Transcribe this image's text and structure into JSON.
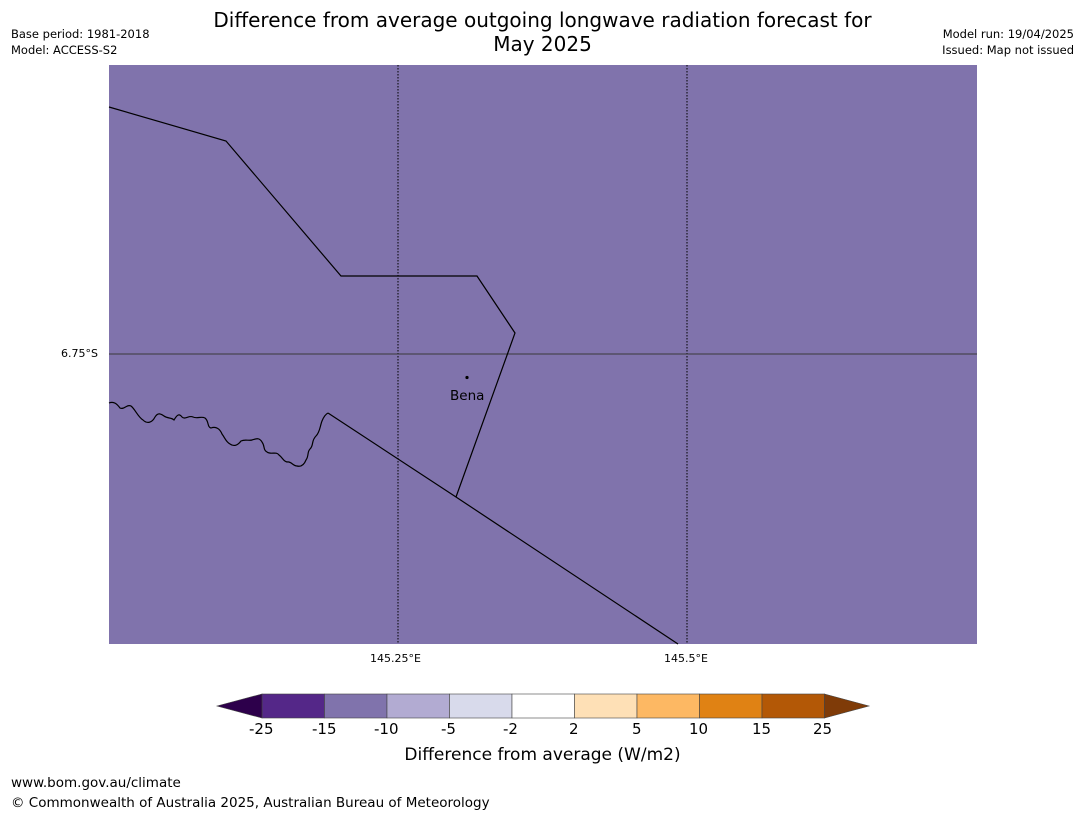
{
  "header": {
    "title_line1": "Difference from average outgoing longwave radiation forecast for",
    "title_line2": "May 2025",
    "base_period": "Base period: 1981-2018",
    "model": "Model: ACCESS-S2",
    "model_run": "Model run: 19/04/2025",
    "issued": "Issued: Map not issued"
  },
  "map": {
    "fill_color": "#8073ac",
    "latitude_labels": [
      "6.75°S"
    ],
    "longitude_labels": [
      "145.25°E",
      "145.5°E"
    ],
    "places": [
      {
        "name": "Bena"
      }
    ]
  },
  "colorbar": {
    "label": "Difference from average (W/m2)",
    "ticks": [
      "-25",
      "-15",
      "-10",
      "-5",
      "-2",
      "2",
      "5",
      "10",
      "15",
      "25"
    ],
    "low_extend_color": "#2d004b",
    "high_extend_color": "#7f3b08",
    "bin_colors": [
      "#542788",
      "#8073ac",
      "#b2abd2",
      "#d8daeb",
      "#ffffff",
      "#fee0b6",
      "#fdb863",
      "#e08214",
      "#b35806"
    ]
  },
  "footer": {
    "url": "www.bom.gov.au/climate",
    "copyright": "© Commonwealth of Australia 2025, Australian Bureau of Meteorology"
  }
}
